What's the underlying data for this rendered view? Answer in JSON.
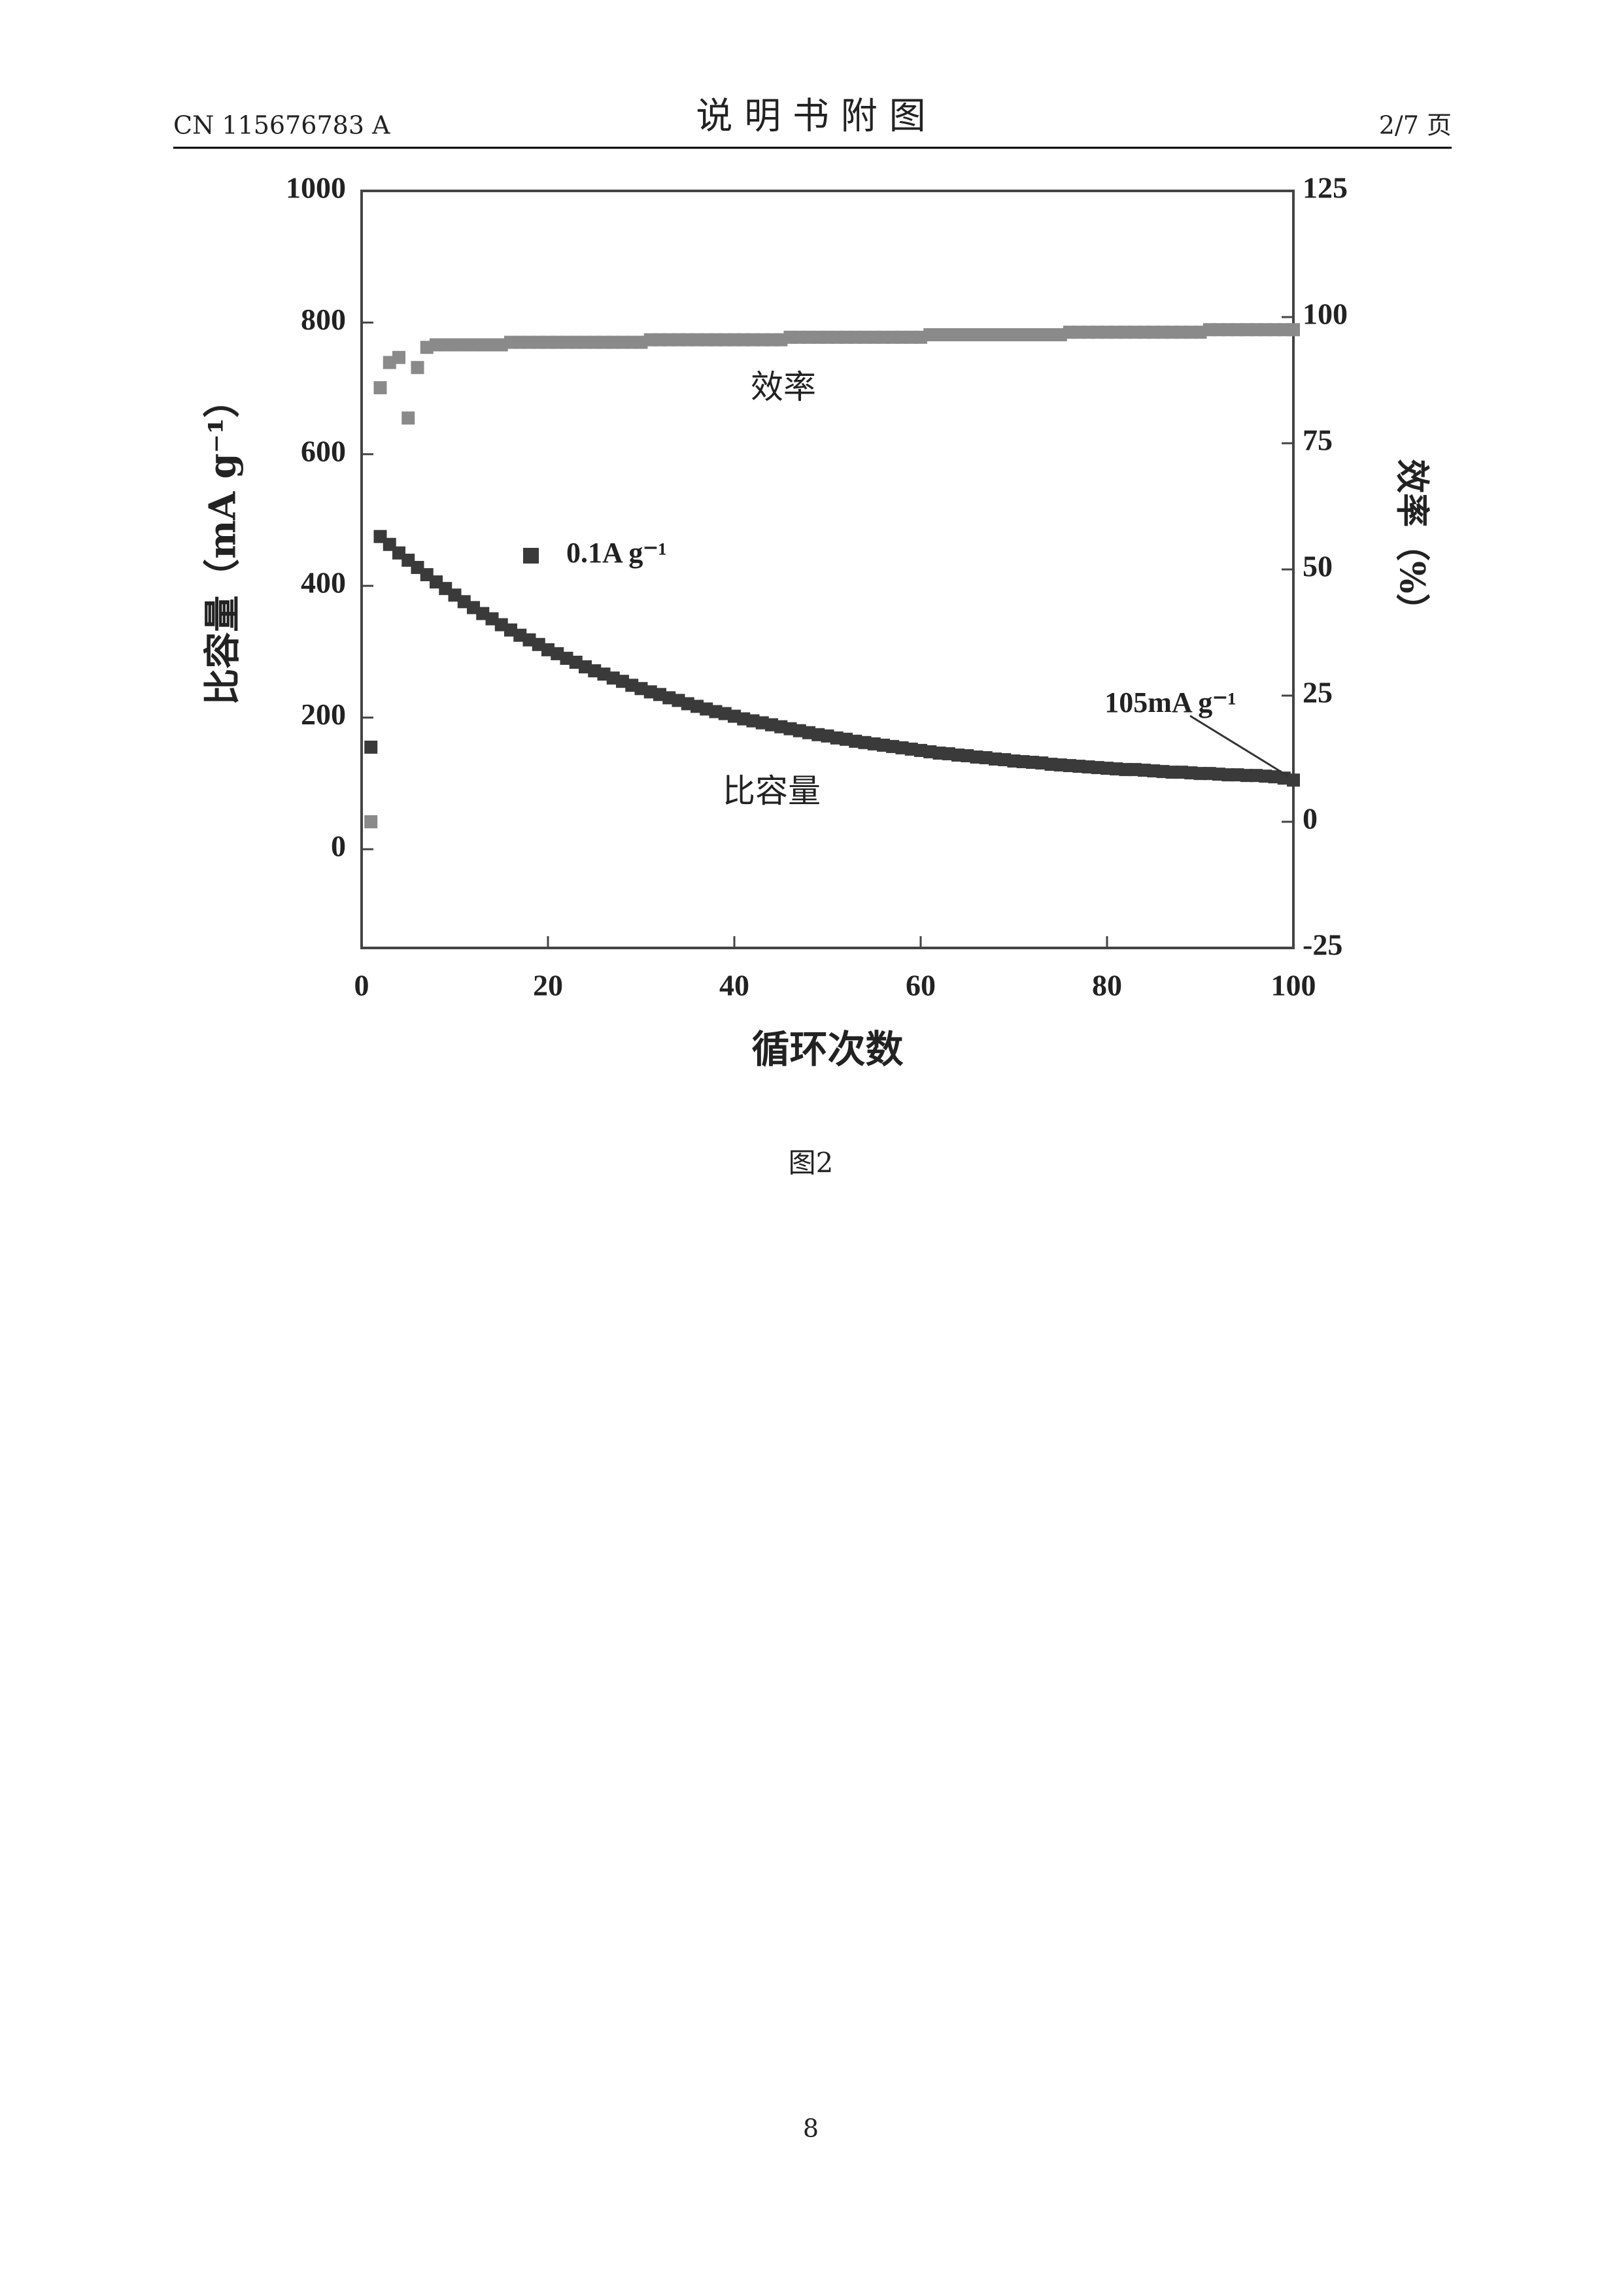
{
  "header": {
    "left": "CN 115676783 A",
    "title": "说 明 书 附 图",
    "right": "2/7 页"
  },
  "chart_data": {
    "type": "scatter",
    "xlabel": "循环次数",
    "ylabel": "比容量（mA g⁻¹）",
    "y2label": "效率（%）",
    "legend_label": "0.1A g⁻¹",
    "annotation": "105mA g⁻¹",
    "xlim": [
      0,
      100
    ],
    "xticks": [
      0,
      20,
      40,
      60,
      80,
      100
    ],
    "ylim": [
      -150,
      1000
    ],
    "yticks": [
      0,
      200,
      400,
      600,
      800,
      1000
    ],
    "y2lim": [
      -25,
      125
    ],
    "y2ticks": [
      -25,
      0,
      25,
      50,
      75,
      100,
      125
    ],
    "x": [
      1,
      2,
      3,
      4,
      5,
      6,
      7,
      8,
      9,
      10,
      11,
      12,
      13,
      14,
      15,
      16,
      17,
      18,
      19,
      20,
      21,
      22,
      23,
      24,
      25,
      26,
      27,
      28,
      29,
      30,
      31,
      32,
      33,
      34,
      35,
      36,
      37,
      38,
      39,
      40,
      41,
      42,
      43,
      44,
      45,
      46,
      47,
      48,
      49,
      50,
      51,
      52,
      53,
      54,
      55,
      56,
      57,
      58,
      59,
      60,
      61,
      62,
      63,
      64,
      65,
      66,
      67,
      68,
      69,
      70,
      71,
      72,
      73,
      74,
      75,
      76,
      77,
      78,
      79,
      80,
      81,
      82,
      83,
      84,
      85,
      86,
      87,
      88,
      89,
      90,
      91,
      92,
      93,
      94,
      95,
      96,
      97,
      98,
      99,
      100
    ],
    "series": [
      {
        "name": "比容量",
        "color": "#3a3a3a",
        "values": [
          155,
          475,
          463,
          450,
          439,
          428,
          417,
          406,
          396,
          386,
          376,
          367,
          358,
          350,
          341,
          333,
          325,
          318,
          311,
          303,
          297,
          290,
          284,
          277,
          271,
          266,
          260,
          255,
          249,
          244,
          239,
          235,
          230,
          226,
          221,
          217,
          213,
          209,
          206,
          202,
          198,
          195,
          192,
          189,
          186,
          183,
          180,
          177,
          174,
          172,
          169,
          167,
          164,
          162,
          160,
          158,
          156,
          154,
          152,
          150,
          148,
          146,
          145,
          143,
          142,
          140,
          139,
          137,
          136,
          134,
          133,
          132,
          131,
          129,
          128,
          127,
          126,
          125,
          124,
          123,
          122,
          121,
          121,
          120,
          119,
          118,
          117,
          117,
          116,
          115,
          115,
          114,
          113,
          113,
          112,
          112,
          111,
          110,
          108,
          105
        ]
      },
      {
        "name": "效率",
        "color": "#8a8a8a",
        "axis": "y2",
        "values": [
          0,
          86,
          91,
          92,
          80,
          90,
          94,
          94.5,
          94.5,
          94.5,
          94.5,
          94.5,
          94.5,
          94.5,
          94.5,
          95,
          95,
          95,
          95,
          95,
          95,
          95,
          95,
          95,
          95,
          95,
          95,
          95,
          95,
          95,
          95.5,
          95.5,
          95.5,
          95.5,
          95.5,
          95.5,
          95.5,
          95.5,
          95.5,
          95.5,
          95.5,
          95.5,
          95.5,
          95.5,
          95.5,
          96,
          96,
          96,
          96,
          96,
          96,
          96,
          96,
          96,
          96,
          96,
          96,
          96,
          96,
          96,
          96.5,
          96.5,
          96.5,
          96.5,
          96.5,
          96.5,
          96.5,
          96.5,
          96.5,
          96.5,
          96.5,
          96.5,
          96.5,
          96.5,
          96.5,
          97,
          97,
          97,
          97,
          97,
          97,
          97,
          97,
          97,
          97,
          97,
          97,
          97,
          97,
          97,
          97.5,
          97.5,
          97.5,
          97.5,
          97.5,
          97.5,
          97.5,
          97.5,
          97.5,
          97.5
        ]
      }
    ]
  },
  "caption": "图2",
  "page_number": "8"
}
